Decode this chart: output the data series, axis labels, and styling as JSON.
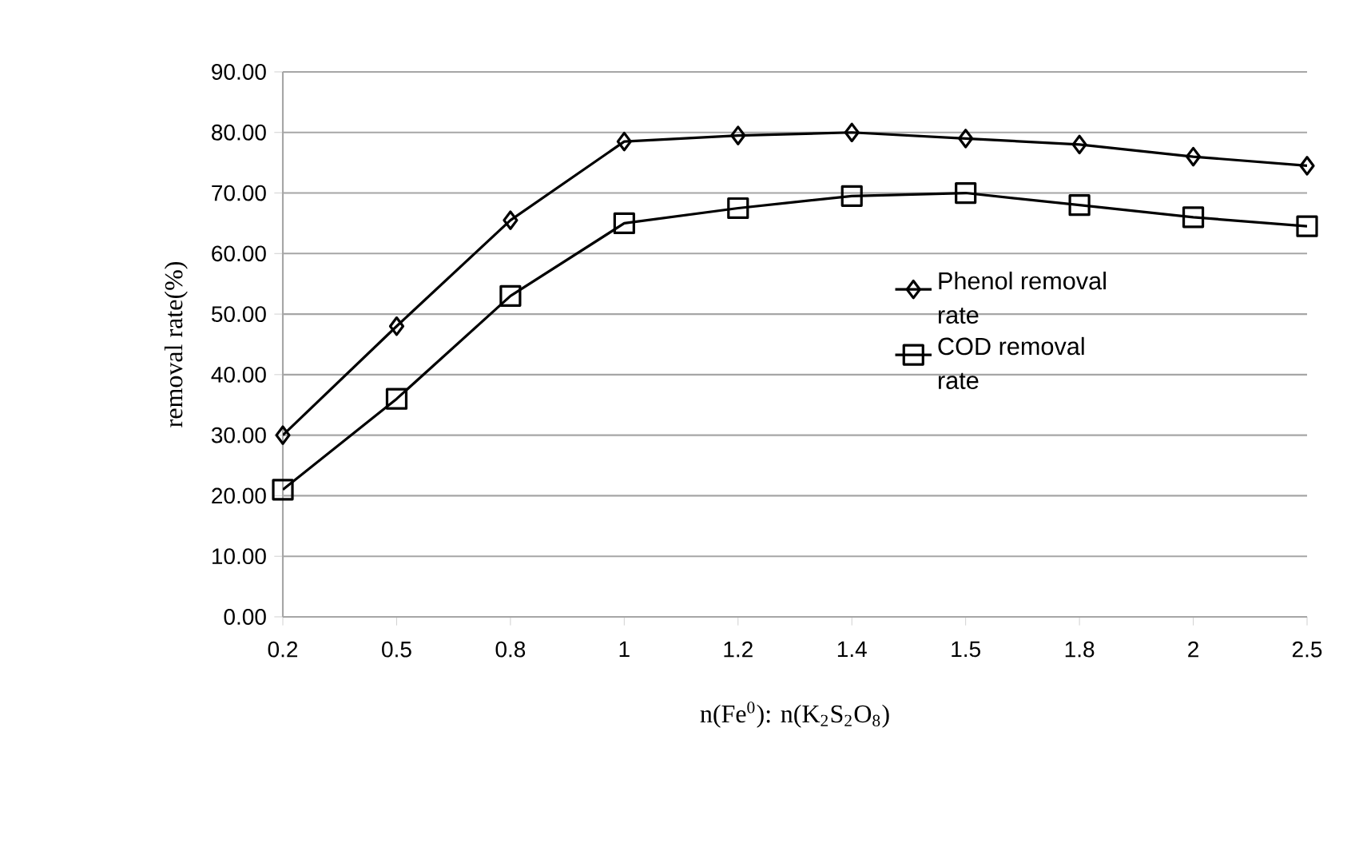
{
  "chart_data": {
    "type": "line",
    "xlabel": "n(Fe$^{0}$): n(K$_{2}$S$_{2}$O$_{8}$)",
    "ylabel": "removal rate(%)",
    "categories": [
      "0.2",
      "0.5",
      "0.8",
      "1",
      "1.2",
      "1.4",
      "1.5",
      "1.8",
      "2",
      "2.5"
    ],
    "series": [
      {
        "name": "Phenol removal rate",
        "color": "#000000",
        "marker": "diamond",
        "values": [
          30,
          48,
          65.5,
          78.5,
          79.5,
          80,
          79,
          78,
          76,
          74.5
        ]
      },
      {
        "name": "COD removal rate",
        "color": "#000000",
        "marker": "square",
        "values": [
          21,
          36,
          53,
          65,
          67.5,
          69.5,
          70,
          68,
          66,
          64.5
        ]
      }
    ],
    "ylim": [
      0,
      90
    ],
    "yticks": [
      {
        "value": 0,
        "label": "0.00"
      },
      {
        "value": 10,
        "label": "10.00"
      },
      {
        "value": 20,
        "label": "20.00"
      },
      {
        "value": 30,
        "label": "30.00"
      },
      {
        "value": 40,
        "label": "40.00"
      },
      {
        "value": 50,
        "label": "50.00"
      },
      {
        "value": 60,
        "label": "60.00"
      },
      {
        "value": 70,
        "label": "70.00"
      },
      {
        "value": 80,
        "label": "80.00"
      },
      {
        "value": 90,
        "label": "90.00"
      }
    ],
    "grid": "y",
    "legend": "right",
    "line_style": "solid"
  }
}
